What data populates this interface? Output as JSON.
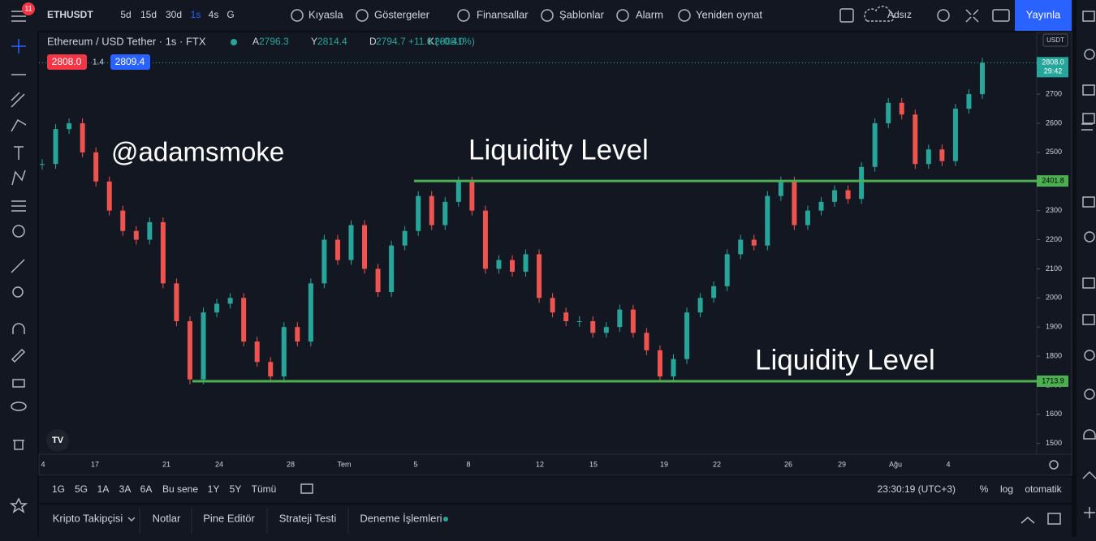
{
  "toolbar": {
    "badge": "11",
    "symbol": "ETHUSDT",
    "intervals": [
      "5d",
      "15d",
      "30d",
      "1s",
      "4s",
      "G"
    ],
    "buttons": [
      "Kıyasla",
      "Göstergeler",
      "Finansallar",
      "Şablonlar",
      "Alarm",
      "Yeniden oynat"
    ],
    "layout_name": "Adsız",
    "publish": "Yayınla"
  },
  "legend": {
    "title": "Ethereum / USD Tether · 1s · FTX",
    "ohlc": [
      {
        "key": "A",
        "value": "2796.3"
      },
      {
        "key": "Y",
        "value": "2814.4"
      },
      {
        "key": "D",
        "value": "2794.7"
      },
      {
        "key": "K",
        "value": "2808.0"
      }
    ],
    "change": "+11.6 (+0.41%)",
    "sell": "2808.0",
    "spread": "1.4",
    "buy": "2809.4"
  },
  "chart": {
    "annotations": [
      "@adamsmoke",
      "Liquidity Level",
      "Liquidity Level"
    ],
    "currency": "USDT",
    "ylim": [
      1463,
      2912
    ],
    "yticks": [
      1500,
      1600,
      1700,
      1800,
      1900,
      2000,
      2100,
      2200,
      2300,
      2400,
      2500,
      2600,
      2700
    ],
    "closes": [
      2460,
      2580,
      2600,
      2500,
      2400,
      2300,
      2230,
      2200,
      2260,
      2050,
      1920,
      1720,
      1950,
      1980,
      2000,
      1850,
      1780,
      1730,
      1900,
      1850,
      2050,
      2200,
      2130,
      2250,
      2100,
      2020,
      2180,
      2230,
      2350,
      2250,
      2330,
      2400,
      2300,
      2100,
      2130,
      2090,
      2150,
      2000,
      1950,
      1920,
      1920,
      1880,
      1900,
      1960,
      1880,
      1820,
      1730,
      1790,
      1950,
      2000,
      2040,
      2150,
      2200,
      2180,
      2350,
      2400,
      2250,
      2300,
      2330,
      2370,
      2340,
      2450,
      2600,
      2670,
      2630,
      2460,
      2510,
      2470,
      2650,
      2700,
      2808
    ],
    "levels": [
      2401.8,
      1713.9
    ],
    "last_price": {
      "value": 2808,
      "label": "2808.0"
    },
    "countdown": "29:42",
    "x_labels": [
      "4",
      "17",
      "21",
      "24",
      "28",
      "Tem",
      "5",
      "8",
      "12",
      "15",
      "19",
      "22",
      "26",
      "29",
      "Ağu",
      "4"
    ]
  },
  "bottom": {
    "ranges": [
      "1G",
      "5G",
      "1A",
      "3A",
      "6A",
      "Bu sene",
      "1Y",
      "5Y",
      "Tümü"
    ],
    "clock": "23:30:19 (UTC+3)",
    "options": [
      "%",
      "log",
      "otomatik"
    ]
  },
  "tabs": [
    "Kripto Takipçisi",
    "Notlar",
    "Pine Editör",
    "Strateji Testi",
    "Deneme İşlemleri"
  ]
}
